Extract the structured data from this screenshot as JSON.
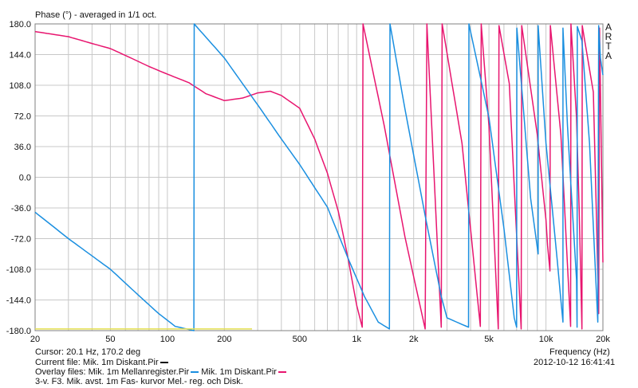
{
  "title": "Phase (°) - averaged in 1/1 oct.",
  "brand_letters": [
    "A",
    "R",
    "T",
    "A"
  ],
  "footer": {
    "cursor": "Cursor: 20.1 Hz, 170.2 deg",
    "current_file_label": "Current file: Mik. 1m Diskant.Pir",
    "overlay_label": "Overlay files: Mik. 1m Mellanregister.Pir",
    "overlay_label_2": "Mik. 1m Diskant.Pir",
    "description": "3-v. F3. Mik. avst. 1m Fas- kurvor Mel.- reg. och Disk.",
    "datetime": "2012-10-12  16:41:41"
  },
  "chart_data": {
    "type": "line",
    "title": "Phase (°) - averaged in 1/1 oct.",
    "xlabel": "Frequency (Hz)",
    "ylabel": "",
    "xscale": "log",
    "xlim": [
      20,
      20000
    ],
    "ylim": [
      -180,
      180
    ],
    "grid": true,
    "x_tick_labels": [
      "20",
      "50",
      "100",
      "200",
      "500",
      "1k",
      "2k",
      "5k",
      "10k",
      "20k"
    ],
    "x_tick_values": [
      20,
      50,
      100,
      200,
      500,
      1000,
      2000,
      5000,
      10000,
      20000
    ],
    "y_tick_labels": [
      "180.0",
      "144.0",
      "108.0",
      "72.0",
      "36.0",
      "0.0",
      "-36.0",
      "-72.0",
      "-108.0",
      "-144.0",
      "-180.0"
    ],
    "y_tick_values": [
      180,
      144,
      108,
      72,
      36,
      0,
      -36,
      -72,
      -108,
      -144,
      -180
    ],
    "series": [
      {
        "name": "Mik. 1m Mellanregister.Pir",
        "color": "#e8156f",
        "points": [
          [
            20,
            171
          ],
          [
            30,
            165
          ],
          [
            40,
            157
          ],
          [
            50,
            151
          ],
          [
            60,
            143
          ],
          [
            80,
            130
          ],
          [
            100,
            121
          ],
          [
            130,
            111
          ],
          [
            160,
            98
          ],
          [
            200,
            90
          ],
          [
            250,
            93
          ],
          [
            300,
            99
          ],
          [
            350,
            101
          ],
          [
            400,
            96
          ],
          [
            500,
            81
          ],
          [
            600,
            45
          ],
          [
            700,
            5
          ],
          [
            800,
            -40
          ],
          [
            900,
            -95
          ],
          [
            1000,
            -150
          ],
          [
            1070,
            -176
          ],
          [
            1080,
            180
          ],
          [
            1400,
            60
          ],
          [
            1800,
            -70
          ],
          [
            2300,
            -178
          ],
          [
            2350,
            180
          ],
          [
            2800,
            -176
          ],
          [
            2830,
            180
          ],
          [
            3600,
            40
          ],
          [
            4500,
            -175
          ],
          [
            4550,
            180
          ],
          [
            5000,
            60
          ],
          [
            5600,
            -178
          ],
          [
            5650,
            178
          ],
          [
            6400,
            110
          ],
          [
            7400,
            -178
          ],
          [
            7450,
            178
          ],
          [
            9000,
            50
          ],
          [
            10000,
            -50
          ],
          [
            10200,
            -80
          ],
          [
            10500,
            -110
          ],
          [
            10550,
            178
          ],
          [
            12000,
            50
          ],
          [
            13500,
            -175
          ],
          [
            13550,
            180
          ],
          [
            14500,
            70
          ],
          [
            15000,
            -40
          ],
          [
            15500,
            -178
          ],
          [
            15550,
            178
          ],
          [
            17800,
            100
          ],
          [
            18500,
            -50
          ],
          [
            19000,
            -160
          ],
          [
            19200,
            175
          ],
          [
            20000,
            -100
          ]
        ]
      },
      {
        "name": "Mik. 1m Diskant.Pir",
        "color": "#1a8fe0",
        "points": [
          [
            20,
            -41
          ],
          [
            30,
            -72
          ],
          [
            50,
            -108
          ],
          [
            70,
            -138
          ],
          [
            90,
            -160
          ],
          [
            110,
            -175
          ],
          [
            138,
            -180
          ],
          [
            138.5,
            180
          ],
          [
            200,
            140
          ],
          [
            300,
            85
          ],
          [
            400,
            45
          ],
          [
            500,
            15
          ],
          [
            700,
            -35
          ],
          [
            900,
            -95
          ],
          [
            1100,
            -140
          ],
          [
            1300,
            -170
          ],
          [
            1490,
            -178
          ],
          [
            1500,
            180
          ],
          [
            1800,
            80
          ],
          [
            2300,
            -45
          ],
          [
            2800,
            -140
          ],
          [
            3000,
            -165
          ],
          [
            3900,
            -176
          ],
          [
            3920,
            180
          ],
          [
            5000,
            70
          ],
          [
            6000,
            -60
          ],
          [
            6800,
            -165
          ],
          [
            7000,
            -176
          ],
          [
            7020,
            175
          ],
          [
            8100,
            5
          ],
          [
            8300,
            -25
          ],
          [
            9100,
            -90
          ],
          [
            9100.5,
            178
          ],
          [
            10000,
            40
          ],
          [
            11500,
            -100
          ],
          [
            12300,
            -170
          ],
          [
            12300.5,
            175
          ],
          [
            13000,
            60
          ],
          [
            14500,
            -120
          ],
          [
            14600,
            -176
          ],
          [
            14650,
            177
          ],
          [
            15500,
            160
          ],
          [
            17000,
            40
          ],
          [
            18000,
            -80
          ],
          [
            18800,
            -170
          ],
          [
            19000,
            178
          ],
          [
            19400,
            140
          ],
          [
            20000,
            120
          ]
        ]
      },
      {
        "name": "",
        "color": "#e5e050",
        "points": [
          [
            20,
            -178
          ],
          [
            280,
            -178
          ]
        ]
      }
    ]
  }
}
